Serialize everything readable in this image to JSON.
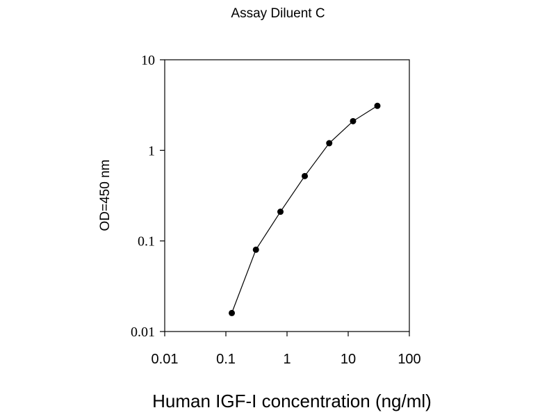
{
  "chart_data": {
    "type": "line",
    "title": "Assay Diluent C",
    "xlabel": "Human IGF-I concentration (ng/ml)",
    "ylabel": "OD=450 nm",
    "x_scale": "log",
    "y_scale": "log",
    "xlim": [
      0.01,
      100
    ],
    "ylim": [
      0.01,
      10
    ],
    "x_ticks": [
      "0.01",
      "0.1",
      "1",
      "10",
      "100"
    ],
    "y_ticks": [
      "10",
      "1",
      "0.1",
      "0.01"
    ],
    "grid": false,
    "series": [
      {
        "x": [
          0.125,
          0.31,
          0.78,
          1.95,
          4.9,
          12,
          30
        ],
        "y": [
          0.016,
          0.08,
          0.21,
          0.52,
          1.2,
          2.1,
          3.1
        ]
      }
    ]
  }
}
